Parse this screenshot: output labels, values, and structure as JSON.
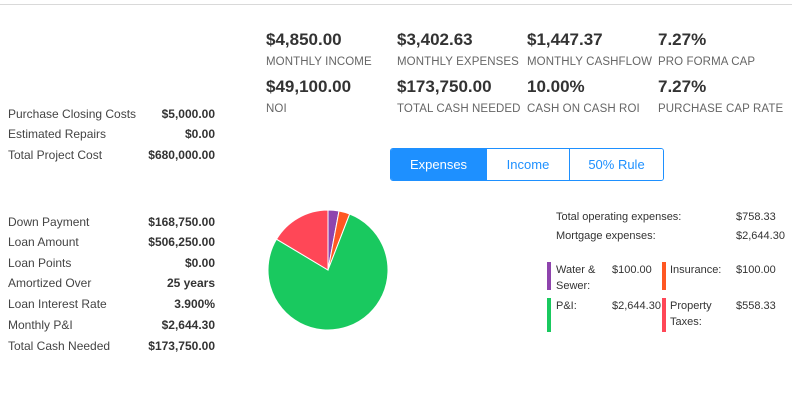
{
  "metrics": [
    {
      "value": "$4,850.00",
      "label": "MONTHLY INCOME"
    },
    {
      "value": "$3,402.63",
      "label": "MONTHLY EXPENSES"
    },
    {
      "value": "$1,447.37",
      "label": "MONTHLY CASHFLOW"
    },
    {
      "value": "7.27%",
      "label": "PRO FORMA CAP"
    },
    {
      "value": "$49,100.00",
      "label": "NOI"
    },
    {
      "value": "$173,750.00",
      "label": "TOTAL CASH NEEDED"
    },
    {
      "value": "10.00%",
      "label": "CASH ON CASH ROI"
    },
    {
      "value": "7.27%",
      "label": "PURCHASE CAP RATE"
    }
  ],
  "project": [
    {
      "label": "Purchase Closing Costs",
      "value": "$5,000.00"
    },
    {
      "label": "Estimated Repairs",
      "value": "$0.00"
    },
    {
      "label": "Total Project Cost",
      "value": "$680,000.00"
    }
  ],
  "loan": [
    {
      "label": "Down Payment",
      "value": "$168,750.00"
    },
    {
      "label": "Loan Amount",
      "value": "$506,250.00"
    },
    {
      "label": "Loan Points",
      "value": "$0.00"
    },
    {
      "label": "Amortized Over",
      "value": "25 years"
    },
    {
      "label": "Loan Interest Rate",
      "value": "3.900%"
    },
    {
      "label": "Monthly P&I",
      "value": "$2,644.30"
    },
    {
      "label": "Total Cash Needed",
      "value": "$173,750.00"
    }
  ],
  "tabs": [
    {
      "label": "Expenses",
      "active": true
    },
    {
      "label": "Income",
      "active": false
    },
    {
      "label": "50% Rule",
      "active": false
    }
  ],
  "summary": [
    {
      "label": "Total operating expenses:",
      "value": "$758.33"
    },
    {
      "label": "Mortgage expenses:",
      "value": "$2,644.30"
    }
  ],
  "legend": [
    {
      "label": "Water & Sewer:",
      "value": "$100.00",
      "color": "#8e44ad"
    },
    {
      "label": "Insurance:",
      "value": "$100.00",
      "color": "#ff5722"
    },
    {
      "label": "P&I:",
      "value": "$2,644.30",
      "color": "#19c95f"
    },
    {
      "label": "Property Taxes:",
      "value": "$558.33",
      "color": "#ff4757"
    }
  ],
  "chart_data": {
    "type": "pie",
    "slices": [
      {
        "label": "Water & Sewer",
        "value": 100.0,
        "color": "#8e44ad"
      },
      {
        "label": "Insurance",
        "value": 100.0,
        "color": "#ff5722"
      },
      {
        "label": "P&I",
        "value": 2644.3,
        "color": "#19c95f"
      },
      {
        "label": "Property Taxes",
        "value": 558.33,
        "color": "#ff4757"
      }
    ]
  }
}
